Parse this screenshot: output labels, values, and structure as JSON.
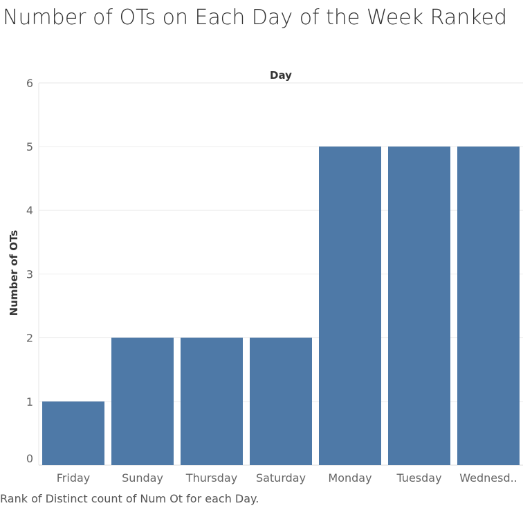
{
  "title": "Number of OTs on Each Day of the Week Ranked",
  "footer": "Rank of Distinct count of Num Ot for each Day.",
  "chart_data": {
    "type": "bar",
    "title": "Number of OTs on Each Day of the Week Ranked",
    "header": "Day",
    "xlabel": "",
    "ylabel": "Number of OTs",
    "categories": [
      "Friday",
      "Sunday",
      "Thursday",
      "Saturday",
      "Monday",
      "Tuesday",
      "Wednesd.."
    ],
    "values": [
      1,
      2,
      2,
      2,
      5,
      5,
      5
    ],
    "ylim": [
      0,
      6
    ],
    "yticks": [
      0,
      1,
      2,
      3,
      4,
      5,
      6
    ],
    "grid": true,
    "bar_color": "#4e79a7"
  }
}
